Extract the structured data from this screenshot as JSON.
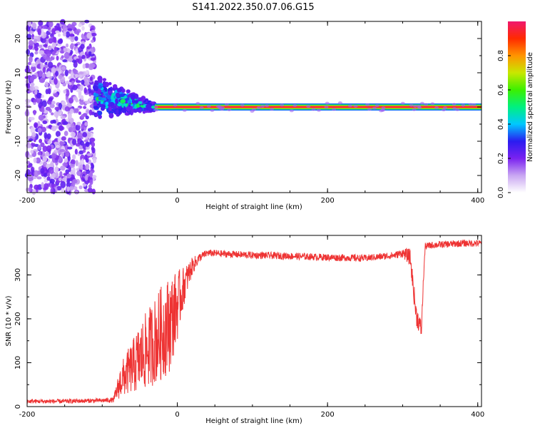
{
  "title": "S141.2022.350.07.06.G15",
  "chart_data": [
    {
      "type": "heatmap",
      "xlabel": "Height of straight line (km)",
      "ylabel": "Frequency (Hz)",
      "xlim": [
        -200,
        405
      ],
      "ylim": [
        -25,
        25
      ],
      "x_ticks": [
        -200,
        0,
        200,
        400
      ],
      "y_ticks": [
        -20,
        -10,
        0,
        10,
        20
      ],
      "colorbar": {
        "label": "Normalized spectral amplitude",
        "range": [
          0,
          1
        ],
        "ticks": [
          0.0,
          0.2,
          0.4,
          0.6,
          0.8
        ],
        "colors": [
          "#ffffff",
          "#c9a6f2",
          "#7a22f0",
          "#2a1cf0",
          "#00c8ff",
          "#00f080",
          "#3cf000",
          "#c8e800",
          "#ff9400",
          "#ff2a00",
          "#f0186e"
        ]
      },
      "features": [
        {
          "x": [
            -200,
            -110
          ],
          "y": [
            -25,
            25
          ],
          "amplitude": [
            0.05,
            0.25
          ],
          "note_key": "scatter"
        },
        {
          "x": [
            -110,
            -30
          ],
          "y_center": [
            3,
            0
          ],
          "y_halfwidth": [
            7,
            1
          ],
          "amplitude": [
            0.2,
            0.6
          ]
        },
        {
          "x": [
            -30,
            405
          ],
          "y": [
            0,
            0
          ],
          "amplitude": [
            0.9,
            1.0
          ]
        }
      ]
    },
    {
      "type": "line",
      "xlabel": "Height of straight line (km)",
      "ylabel": "SNR (10 * v/v)",
      "xlim": [
        -200,
        405
      ],
      "ylim": [
        0,
        390
      ],
      "x_ticks": [
        -200,
        0,
        200,
        400
      ],
      "y_ticks": [
        0,
        100,
        200,
        300
      ],
      "color": "#ee3333",
      "x": [
        -200,
        -150,
        -100,
        -85,
        -75,
        -60,
        -50,
        -40,
        -30,
        -20,
        -10,
        0,
        10,
        20,
        30,
        40,
        60,
        100,
        150,
        200,
        250,
        290,
        300,
        310,
        318,
        325,
        328,
        330,
        340,
        360,
        380,
        405
      ],
      "y": [
        12,
        12,
        14,
        15,
        60,
        90,
        110,
        130,
        150,
        170,
        190,
        230,
        280,
        320,
        340,
        350,
        348,
        345,
        343,
        340,
        338,
        345,
        350,
        340,
        210,
        175,
        300,
        365,
        368,
        370,
        372,
        372
      ],
      "noise": [
        5,
        5,
        5,
        6,
        40,
        60,
        80,
        90,
        100,
        110,
        110,
        80,
        40,
        20,
        10,
        8,
        8,
        8,
        8,
        8,
        8,
        8,
        10,
        20,
        25,
        20,
        10,
        8,
        8,
        8,
        8,
        8
      ]
    }
  ]
}
